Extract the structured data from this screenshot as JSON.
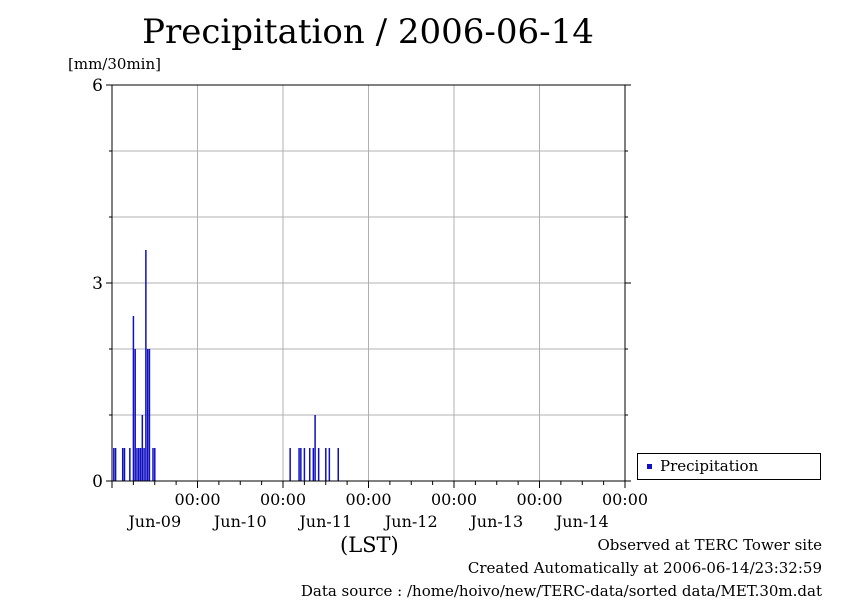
{
  "chart_data": {
    "type": "bar",
    "title": "Precipitation / 2006-06-14",
    "ylabel": "[mm/30min]",
    "xlabel": "(LST)",
    "ylim": [
      0,
      6
    ],
    "y_ticks": [
      "0",
      "3",
      "6"
    ],
    "x_ticks": [
      {
        "time": "00:00",
        "date": "Jun-09"
      },
      {
        "time": "00:00",
        "date": "Jun-10"
      },
      {
        "time": "00:00",
        "date": "Jun-11"
      },
      {
        "time": "00:00",
        "date": "Jun-12"
      },
      {
        "time": "00:00",
        "date": "Jun-13"
      },
      {
        "time": "00:00",
        "date": "Jun-14"
      }
    ],
    "x_range": [
      "2006-06-08T00:00",
      "2006-06-14T00:00"
    ],
    "grid": true,
    "legend_position": "right",
    "series": [
      {
        "name": "Precipitation",
        "color": "#1010c0",
        "points": [
          {
            "t": "2006-06-08T00:30",
            "v": 0.5
          },
          {
            "t": "2006-06-08T01:00",
            "v": 0.5
          },
          {
            "t": "2006-06-08T03:00",
            "v": 0.5
          },
          {
            "t": "2006-06-08T03:30",
            "v": 0.5
          },
          {
            "t": "2006-06-08T05:00",
            "v": 0.5
          },
          {
            "t": "2006-06-08T06:00",
            "v": 2.5
          },
          {
            "t": "2006-06-08T06:30",
            "v": 2.0
          },
          {
            "t": "2006-06-08T07:00",
            "v": 0.5
          },
          {
            "t": "2006-06-08T07:30",
            "v": 0.5
          },
          {
            "t": "2006-06-08T08:00",
            "v": 0.5
          },
          {
            "t": "2006-06-08T08:30",
            "v": 1.0
          },
          {
            "t": "2006-06-08T09:00",
            "v": 0.5
          },
          {
            "t": "2006-06-08T09:30",
            "v": 3.5
          },
          {
            "t": "2006-06-08T10:00",
            "v": 2.0
          },
          {
            "t": "2006-06-08T10:30",
            "v": 2.0
          },
          {
            "t": "2006-06-08T11:30",
            "v": 0.5
          },
          {
            "t": "2006-06-08T12:00",
            "v": 0.5
          },
          {
            "t": "2006-06-10T02:00",
            "v": 0.5
          },
          {
            "t": "2006-06-10T04:30",
            "v": 0.5
          },
          {
            "t": "2006-06-10T05:00",
            "v": 0.5
          },
          {
            "t": "2006-06-10T06:00",
            "v": 0.5
          },
          {
            "t": "2006-06-10T07:30",
            "v": 0.5
          },
          {
            "t": "2006-06-10T08:30",
            "v": 0.5
          },
          {
            "t": "2006-06-10T09:00",
            "v": 1.0
          },
          {
            "t": "2006-06-10T10:00",
            "v": 0.5
          },
          {
            "t": "2006-06-10T12:00",
            "v": 0.5
          },
          {
            "t": "2006-06-10T13:00",
            "v": 0.5
          },
          {
            "t": "2006-06-10T15:30",
            "v": 0.5
          }
        ]
      }
    ]
  },
  "legend": {
    "label": "Precipitation"
  },
  "footer": {
    "line1": "Observed at TERC Tower site",
    "line2": "Created Automatically at 2006-06-14/23:32:59",
    "line3": "Data source : /home/hoivo/new/TERC-data/sorted  data/MET.30m.dat"
  }
}
